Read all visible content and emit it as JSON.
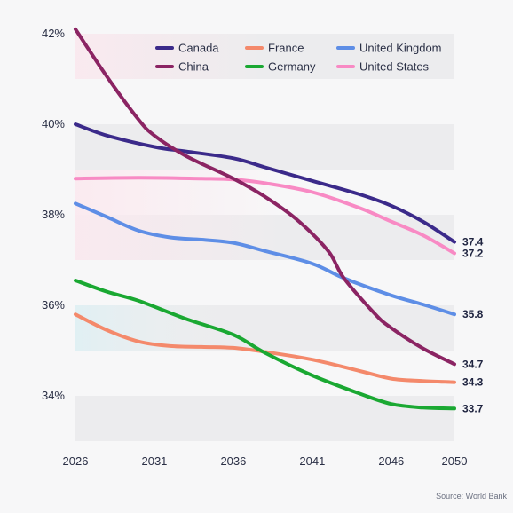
{
  "chart_data": {
    "type": "line",
    "title": "",
    "xlabel": "",
    "ylabel": "",
    "x_ticks": [
      "2026",
      "2031",
      "2036",
      "2041",
      "2046",
      "2050"
    ],
    "y_ticks": [
      "34%",
      "36%",
      "38%",
      "40%",
      "42%"
    ],
    "x_range": [
      2026,
      2050
    ],
    "y_range": [
      33,
      42
    ],
    "grid": "horizontal alternating bands",
    "legend_position": "top",
    "source": "Source: World Bank",
    "series": [
      {
        "name": "Canada",
        "color": "#3b2a8a",
        "end_label": "37.4",
        "points": [
          [
            2026,
            40.0
          ],
          [
            2028,
            39.75
          ],
          [
            2031,
            39.5
          ],
          [
            2033,
            39.4
          ],
          [
            2036,
            39.25
          ],
          [
            2038,
            39.05
          ],
          [
            2041,
            38.75
          ],
          [
            2044,
            38.45
          ],
          [
            2046,
            38.2
          ],
          [
            2048,
            37.85
          ],
          [
            2050,
            37.4
          ]
        ]
      },
      {
        "name": "China",
        "color": "#8b2463",
        "end_label": "34.7",
        "points": [
          [
            2026,
            42.1
          ],
          [
            2028,
            41.05
          ],
          [
            2030,
            40.1
          ],
          [
            2031,
            39.75
          ],
          [
            2033,
            39.3
          ],
          [
            2036,
            38.8
          ],
          [
            2038,
            38.4
          ],
          [
            2040,
            37.9
          ],
          [
            2042,
            37.2
          ],
          [
            2043,
            36.6
          ],
          [
            2045,
            35.8
          ],
          [
            2046,
            35.5
          ],
          [
            2048,
            35.05
          ],
          [
            2050,
            34.7
          ]
        ]
      },
      {
        "name": "France",
        "color": "#f4896b",
        "end_label": "34.3",
        "points": [
          [
            2026,
            35.8
          ],
          [
            2028,
            35.45
          ],
          [
            2030,
            35.2
          ],
          [
            2032,
            35.1
          ],
          [
            2034,
            35.08
          ],
          [
            2036,
            35.06
          ],
          [
            2038,
            34.97
          ],
          [
            2041,
            34.8
          ],
          [
            2044,
            34.55
          ],
          [
            2046,
            34.38
          ],
          [
            2048,
            34.33
          ],
          [
            2050,
            34.3
          ]
        ]
      },
      {
        "name": "Germany",
        "color": "#1aa832",
        "end_label": "33.7",
        "points": [
          [
            2026,
            36.55
          ],
          [
            2028,
            36.3
          ],
          [
            2030,
            36.1
          ],
          [
            2033,
            35.7
          ],
          [
            2036,
            35.35
          ],
          [
            2038,
            34.95
          ],
          [
            2041,
            34.45
          ],
          [
            2044,
            34.05
          ],
          [
            2046,
            33.82
          ],
          [
            2048,
            33.74
          ],
          [
            2050,
            33.72
          ]
        ]
      },
      {
        "name": "United Kingdom",
        "color": "#5e8ee6",
        "end_label": "35.8",
        "points": [
          [
            2026,
            38.25
          ],
          [
            2028,
            37.95
          ],
          [
            2030,
            37.65
          ],
          [
            2032,
            37.5
          ],
          [
            2034,
            37.45
          ],
          [
            2036,
            37.38
          ],
          [
            2038,
            37.2
          ],
          [
            2041,
            36.92
          ],
          [
            2043,
            36.6
          ],
          [
            2046,
            36.22
          ],
          [
            2048,
            36.02
          ],
          [
            2050,
            35.8
          ]
        ]
      },
      {
        "name": "United States",
        "color": "#f88ac4",
        "end_label": "37.2",
        "points": [
          [
            2026,
            38.8
          ],
          [
            2030,
            38.82
          ],
          [
            2034,
            38.8
          ],
          [
            2036,
            38.78
          ],
          [
            2038,
            38.7
          ],
          [
            2041,
            38.5
          ],
          [
            2044,
            38.15
          ],
          [
            2046,
            37.85
          ],
          [
            2048,
            37.55
          ],
          [
            2050,
            37.15
          ]
        ]
      }
    ]
  }
}
